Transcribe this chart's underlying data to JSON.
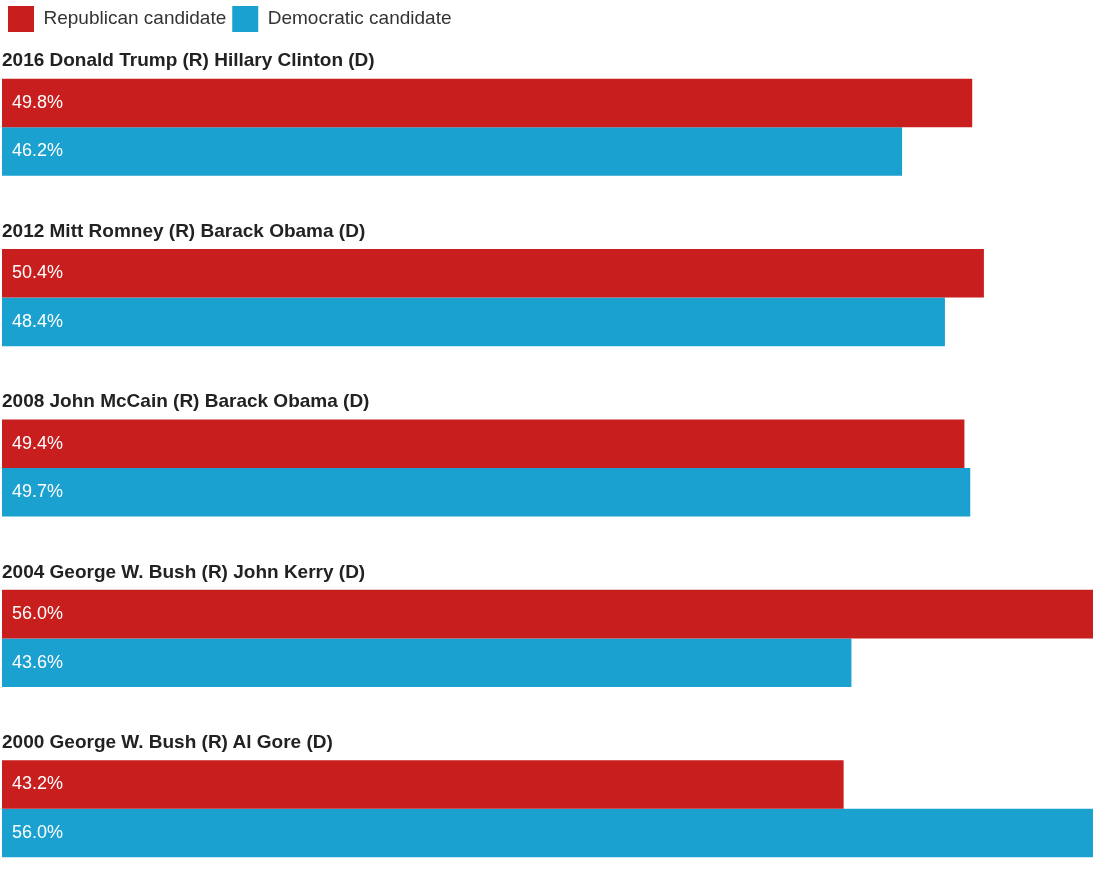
{
  "chart_data": {
    "type": "bar",
    "orientation": "horizontal",
    "legend": "top left",
    "categories": [
      "2016 Donald Trump (R) Hillary Clinton (D)",
      "2012 Mitt Romney (R) Barack Obama (D)",
      "2008 John McCain (R) Barack Obama (D)",
      "2004 George W. Bush (R) John Kerry (D)",
      "2000 George W. Bush (R) Al Gore (D)"
    ],
    "series": [
      {
        "name": "Republican candidate",
        "color": "#c81e1e",
        "values": [
          49.8,
          50.4,
          49.4,
          56.0,
          43.2
        ],
        "value_labels": [
          "49.8%",
          "50.4%",
          "49.4%",
          "56.0%",
          "43.2%"
        ]
      },
      {
        "name": "Democratic candidate",
        "color": "#1ba1cf",
        "values": [
          46.2,
          48.4,
          49.7,
          43.6,
          56.0
        ],
        "value_labels": [
          "46.2%",
          "48.4%",
          "49.7%",
          "43.6%",
          "56.0%"
        ]
      }
    ]
  }
}
